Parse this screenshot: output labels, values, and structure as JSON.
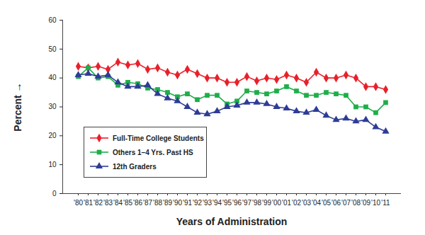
{
  "chart_data": {
    "type": "line",
    "x_label": "Years of Administration",
    "y_label": "Percent",
    "categories": [
      "'80",
      "'81",
      "'82",
      "'83",
      "'84",
      "'85",
      "'86",
      "'87",
      "'88",
      "'89",
      "'90",
      "'91",
      "'92",
      "'93",
      "'94",
      "'95",
      "'96",
      "'97",
      "'98",
      "'99",
      "'00",
      "'01",
      "'02",
      "'03",
      "'04",
      "'05",
      "'06",
      "'07",
      "'08",
      "'09",
      "'10",
      "'11"
    ],
    "series": [
      {
        "name": "Full-Time College Students",
        "color": "#e8202a",
        "marker": "diamond",
        "values": [
          44,
          43.5,
          44,
          43,
          45.5,
          44.5,
          45,
          43,
          43.5,
          42,
          41,
          43,
          41.5,
          40,
          40,
          38.5,
          38.5,
          40.5,
          39,
          40,
          39.5,
          41,
          40,
          38.5,
          42,
          40,
          40,
          41,
          40,
          37,
          37,
          36
        ]
      },
      {
        "name": "Others 1–4 Yrs. Past HS",
        "color": "#1fae4a",
        "marker": "square",
        "values": [
          40.5,
          43.5,
          40,
          40.5,
          37.5,
          38.5,
          38,
          36.5,
          36,
          35,
          33.5,
          34.5,
          32.5,
          34,
          34,
          31,
          32,
          35.5,
          35,
          34.5,
          35.5,
          37,
          35.5,
          34,
          34,
          35,
          34.5,
          34,
          30,
          30,
          28,
          31.5
        ]
      },
      {
        "name": "12th Graders",
        "color": "#2e3c96",
        "marker": "triangle",
        "values": [
          41,
          41.5,
          40.5,
          41,
          38.5,
          37,
          37,
          37.5,
          34.5,
          33,
          32,
          30,
          28,
          27.5,
          28.5,
          30,
          30.5,
          31.5,
          31.5,
          31,
          30,
          29.5,
          28.5,
          28,
          29,
          27,
          25.5,
          26,
          25,
          25.5,
          23,
          21.5
        ]
      }
    ],
    "ylim": [
      0,
      60
    ],
    "yticks": [
      0,
      10,
      20,
      30,
      40,
      50,
      60
    ],
    "grid": false,
    "legend": "lower left"
  }
}
